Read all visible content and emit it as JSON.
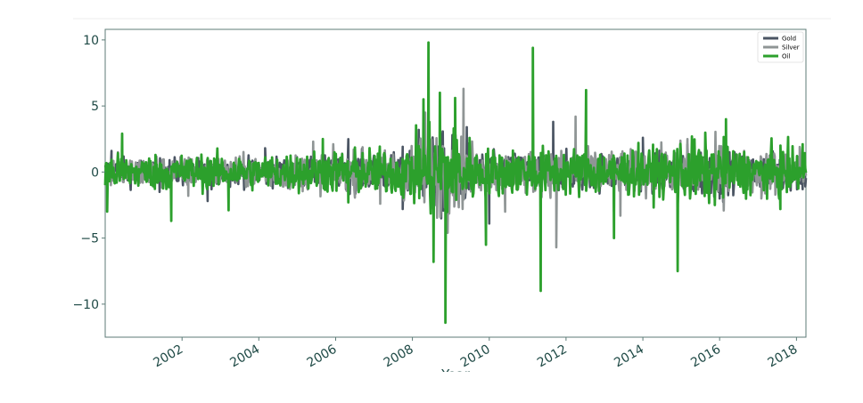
{
  "chart_data": {
    "type": "line",
    "title": "",
    "xlabel": "Year",
    "ylabel": "",
    "ylim": [
      -12.5,
      10.8
    ],
    "xlim": [
      "2000-01-01",
      "2018-04-01"
    ],
    "yticks": [
      10,
      5,
      0,
      -5,
      -10
    ],
    "ytick_labels": [
      "10",
      "5",
      "0",
      "−5",
      "−10"
    ],
    "xtick_labels": [
      "2002",
      "2004",
      "2006",
      "2008",
      "2010",
      "2012",
      "2014",
      "2016",
      "2018"
    ],
    "grid": false,
    "legend_position": "top-right",
    "colors": {
      "Gold": "#4b5563",
      "Silver": "#8f9595",
      "Oil": "#2ca02c",
      "text": "#1f4a46",
      "axes": "#5d7b77"
    },
    "series": [
      {
        "name": "Gold",
        "description": "daily % change; envelope stays within about ±3 with spikes near 2008–2009 and 2013",
        "points": [
          [
            "2000-03-01",
            1.6
          ],
          [
            "2001-06-01",
            -1.5
          ],
          [
            "2002-09-01",
            -2.2
          ],
          [
            "2004-03-01",
            1.8
          ],
          [
            "2006-05-01",
            2.5
          ],
          [
            "2007-10-01",
            -2.8
          ],
          [
            "2008-03-01",
            3.2
          ],
          [
            "2008-10-01",
            -3.5
          ],
          [
            "2009-06-01",
            3.4
          ],
          [
            "2010-01-01",
            -3.9
          ],
          [
            "2011-09-01",
            3.8
          ],
          [
            "2013-04-01",
            -3.0
          ],
          [
            "2014-01-01",
            2.6
          ],
          [
            "2016-01-01",
            -2.0
          ],
          [
            "2017-06-01",
            1.4
          ],
          [
            "2018-03-01",
            -1.3
          ]
        ]
      },
      {
        "name": "Silver",
        "description": "daily % change; slightly wider than gold, largest drop near late 2011",
        "points": [
          [
            "2000-05-01",
            1.5
          ],
          [
            "2002-03-01",
            -1.8
          ],
          [
            "2005-06-01",
            2.3
          ],
          [
            "2007-03-01",
            -2.4
          ],
          [
            "2008-05-01",
            4.5
          ],
          [
            "2008-12-01",
            -4.6
          ],
          [
            "2009-05-01",
            6.3
          ],
          [
            "2010-06-01",
            -3.0
          ],
          [
            "2011-10-01",
            -5.7
          ],
          [
            "2012-04-01",
            4.2
          ],
          [
            "2013-06-01",
            -3.3
          ],
          [
            "2015-03-01",
            2.5
          ],
          [
            "2017-02-01",
            -2.0
          ],
          [
            "2018-02-01",
            1.9
          ]
        ]
      },
      {
        "name": "Oil",
        "description": "daily % change; dominant series with extreme moves during the 2008 crisis",
        "points": [
          [
            "2000-01-20",
            -3.0
          ],
          [
            "2000-06-10",
            2.9
          ],
          [
            "2001-09-20",
            -3.7
          ],
          [
            "2003-03-20",
            -2.9
          ],
          [
            "2005-09-01",
            2.5
          ],
          [
            "2006-05-01",
            -2.3
          ],
          [
            "2008-04-15",
            5.5
          ],
          [
            "2008-06-02",
            9.8
          ],
          [
            "2008-07-20",
            -6.8
          ],
          [
            "2008-09-18",
            6.0
          ],
          [
            "2008-11-10",
            -11.4
          ],
          [
            "2009-02-10",
            5.6
          ],
          [
            "2009-12-01",
            -5.5
          ],
          [
            "2011-02-20",
            9.4
          ],
          [
            "2011-05-05",
            -9.0
          ],
          [
            "2012-07-10",
            6.2
          ],
          [
            "2013-04-01",
            -5.0
          ],
          [
            "2014-11-28",
            -7.5
          ],
          [
            "2016-03-01",
            4.0
          ],
          [
            "2017-08-01",
            -2.8
          ],
          [
            "2018-03-01",
            2.1
          ]
        ]
      }
    ]
  }
}
